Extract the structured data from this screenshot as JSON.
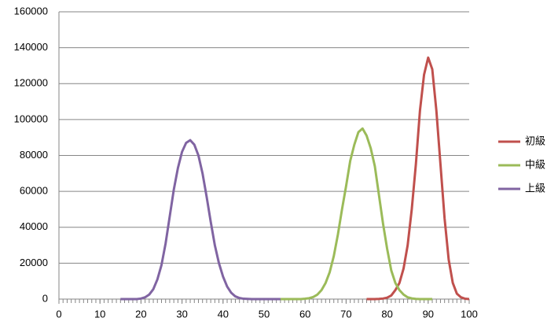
{
  "chart_data": {
    "type": "line",
    "xlim": [
      0,
      100
    ],
    "xticks": [
      0,
      10,
      20,
      30,
      40,
      50,
      60,
      70,
      80,
      90,
      100
    ],
    "ylim": [
      0,
      160000
    ],
    "yticks": [
      0,
      20000,
      40000,
      60000,
      80000,
      100000,
      120000,
      140000,
      160000
    ],
    "grid": true,
    "legend": "right",
    "series": [
      {
        "name": "初級",
        "color": "#c0504d",
        "x": [
          75,
          76,
          77,
          78,
          79,
          80,
          81,
          82,
          83,
          84,
          85,
          86,
          87,
          88,
          89,
          90,
          91,
          92,
          93,
          94,
          95,
          96,
          97,
          98,
          99,
          100
        ],
        "values": [
          0,
          0,
          0,
          100,
          300,
          800,
          2000,
          5000,
          9000,
          17000,
          30000,
          50000,
          75000,
          105000,
          125000,
          134500,
          128000,
          105000,
          75000,
          45000,
          22000,
          9000,
          3000,
          1000,
          200,
          0
        ]
      },
      {
        "name": "中級",
        "color": "#9bbb59",
        "x": [
          54,
          55,
          56,
          57,
          58,
          59,
          60,
          61,
          62,
          63,
          64,
          65,
          66,
          67,
          68,
          69,
          70,
          71,
          72,
          73,
          74,
          75,
          76,
          77,
          78,
          79,
          80,
          81,
          82,
          83,
          84,
          85,
          86,
          87,
          88,
          89,
          90,
          91
        ],
        "values": [
          0,
          0,
          0,
          0,
          0,
          0,
          200,
          500,
          1200,
          2500,
          5000,
          9000,
          15000,
          24000,
          36000,
          50000,
          63000,
          77000,
          86000,
          93000,
          95000,
          91000,
          84000,
          74000,
          58000,
          42000,
          28000,
          16000,
          9000,
          5000,
          2500,
          1000,
          400,
          100,
          0,
          0,
          0,
          0
        ]
      },
      {
        "name": "上級",
        "color": "#8064a2",
        "x": [
          15,
          16,
          17,
          18,
          19,
          20,
          21,
          22,
          23,
          24,
          25,
          26,
          27,
          28,
          29,
          30,
          31,
          32,
          33,
          34,
          35,
          36,
          37,
          38,
          39,
          40,
          41,
          42,
          43,
          44,
          45,
          46,
          47,
          48,
          49,
          50,
          51,
          52,
          53,
          54
        ],
        "values": [
          0,
          0,
          0,
          0,
          0,
          300,
          1000,
          2500,
          5500,
          11000,
          19000,
          31000,
          46000,
          61000,
          73000,
          82000,
          87000,
          88500,
          86000,
          80000,
          70000,
          57000,
          43000,
          30000,
          20000,
          12500,
          7000,
          3500,
          1500,
          600,
          200,
          100,
          0,
          0,
          0,
          0,
          0,
          0,
          0,
          0
        ]
      }
    ]
  }
}
